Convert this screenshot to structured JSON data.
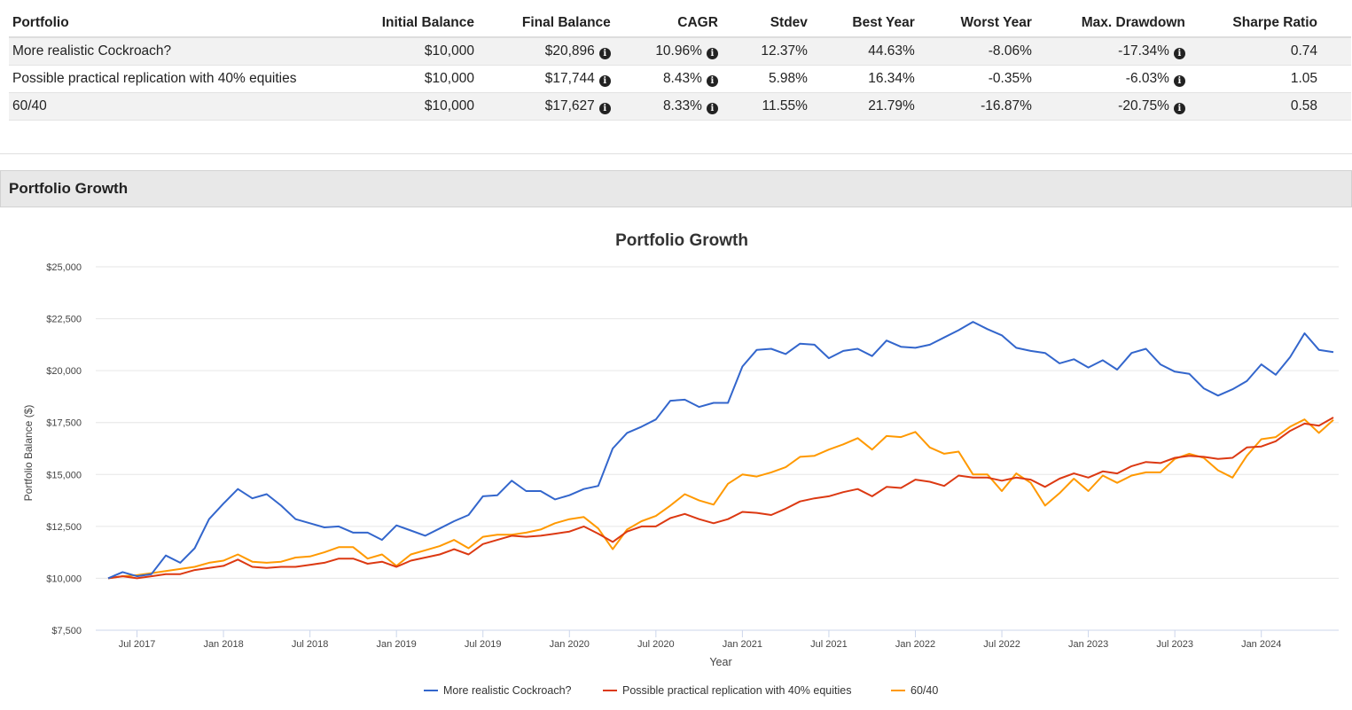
{
  "table": {
    "headers": [
      "Portfolio",
      "Initial Balance",
      "Final Balance",
      "CAGR",
      "Stdev",
      "Best Year",
      "Worst Year",
      "Max. Drawdown",
      "Sharpe Ratio"
    ],
    "rows": [
      {
        "portfolio": "More realistic Cockroach?",
        "initial": "$10,000",
        "final": "$20,896",
        "cagr": "10.96%",
        "stdev": "12.37%",
        "best": "44.63%",
        "worst": "-8.06%",
        "maxdd": "-17.34%",
        "sharpe": "0.74"
      },
      {
        "portfolio": "Possible practical replication with 40% equities",
        "initial": "$10,000",
        "final": "$17,744",
        "cagr": "8.43%",
        "stdev": "5.98%",
        "best": "16.34%",
        "worst": "-0.35%",
        "maxdd": "-6.03%",
        "sharpe": "1.05"
      },
      {
        "portfolio": "60/40",
        "initial": "$10,000",
        "final": "$17,627",
        "cagr": "8.33%",
        "stdev": "11.55%",
        "best": "21.79%",
        "worst": "-16.87%",
        "maxdd": "-20.75%",
        "sharpe": "0.58"
      }
    ],
    "info_icon": "info-circle-icon"
  },
  "panel": {
    "title": "Portfolio Growth"
  },
  "chart_data": {
    "type": "line",
    "title": "Portfolio Growth",
    "xlabel": "Year",
    "ylabel": "Portfolio Balance ($)",
    "ylim": [
      7500,
      25000
    ],
    "yticks": [
      7500,
      10000,
      12500,
      15000,
      17500,
      20000,
      22500,
      25000
    ],
    "ytick_labels": [
      "$7,500",
      "$10,000",
      "$12,500",
      "$15,000",
      "$17,500",
      "$20,000",
      "$22,500",
      "$25,000"
    ],
    "xtick_labels": [
      "Jul 2017",
      "Jan 2018",
      "Jul 2018",
      "Jan 2019",
      "Jul 2019",
      "Jan 2020",
      "Jul 2020",
      "Jan 2021",
      "Jul 2021",
      "Jan 2022",
      "Jul 2022",
      "Jan 2023",
      "Jul 2023",
      "Jan 2024"
    ],
    "x_start": "2017-05",
    "x_end": "2024-10",
    "grid": true,
    "legend_position": "bottom",
    "series": [
      {
        "name": "More realistic Cockroach?",
        "color": "#3366cc",
        "values": [
          10000,
          10300,
          10100,
          10200,
          11100,
          10750,
          11450,
          12850,
          13600,
          14300,
          13850,
          14050,
          13500,
          12850,
          12650,
          12450,
          12500,
          12200,
          12200,
          11850,
          12550,
          12300,
          12050,
          12400,
          12750,
          13050,
          13950,
          14000,
          14700,
          14200,
          14200,
          13800,
          14000,
          14300,
          14450,
          16250,
          17000,
          17300,
          17650,
          18550,
          18600,
          18250,
          18450,
          18450,
          20200,
          21000,
          21050,
          20800,
          21300,
          21250,
          20600,
          20950,
          21050,
          20700,
          21450,
          21150,
          21100,
          21250,
          21600,
          21950,
          22350,
          22000,
          21700,
          21100,
          20950,
          20850,
          20350,
          20550,
          20150,
          20500,
          20050,
          20850,
          21050,
          20300,
          19950,
          19850,
          19150,
          18800,
          19100,
          19500,
          20300,
          19800,
          20650,
          21800,
          21000,
          20896
        ]
      },
      {
        "name": "Possible practical replication with 40% equities",
        "color": "#dc3912",
        "values": [
          10000,
          10100,
          10000,
          10100,
          10200,
          10200,
          10400,
          10500,
          10600,
          10900,
          10550,
          10500,
          10550,
          10550,
          10650,
          10750,
          10950,
          10950,
          10700,
          10800,
          10550,
          10850,
          11000,
          11150,
          11400,
          11150,
          11650,
          11850,
          12050,
          12000,
          12050,
          12150,
          12250,
          12500,
          12150,
          11750,
          12250,
          12500,
          12500,
          12900,
          13100,
          12850,
          12650,
          12850,
          13200,
          13150,
          13050,
          13350,
          13700,
          13850,
          13950,
          14150,
          14300,
          13950,
          14400,
          14350,
          14750,
          14650,
          14450,
          14950,
          14850,
          14850,
          14700,
          14850,
          14750,
          14400,
          14800,
          15050,
          14850,
          15150,
          15050,
          15400,
          15600,
          15550,
          15800,
          15900,
          15850,
          15750,
          15800,
          16300,
          16350,
          16600,
          17100,
          17450,
          17350,
          17744
        ]
      },
      {
        "name": "60/40",
        "color": "#ff9900",
        "values": [
          10000,
          10100,
          10150,
          10250,
          10350,
          10450,
          10550,
          10750,
          10850,
          11150,
          10800,
          10750,
          10800,
          11000,
          11050,
          11250,
          11500,
          11500,
          10950,
          11150,
          10600,
          11150,
          11350,
          11550,
          11850,
          11450,
          12000,
          12100,
          12100,
          12200,
          12350,
          12650,
          12850,
          12950,
          12400,
          11400,
          12350,
          12750,
          13000,
          13500,
          14050,
          13750,
          13550,
          14550,
          15000,
          14900,
          15100,
          15350,
          15850,
          15900,
          16200,
          16450,
          16750,
          16200,
          16850,
          16800,
          17050,
          16300,
          16000,
          16100,
          15000,
          15000,
          14200,
          15050,
          14600,
          13500,
          14100,
          14800,
          14200,
          14950,
          14600,
          14950,
          15100,
          15100,
          15750,
          16000,
          15800,
          15200,
          14850,
          15900,
          16700,
          16800,
          17300,
          17650,
          17000,
          17627
        ]
      }
    ]
  }
}
